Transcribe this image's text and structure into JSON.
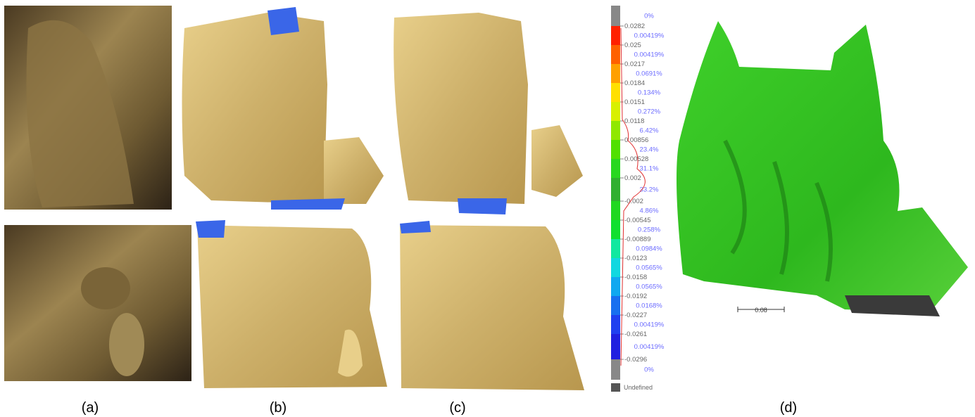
{
  "panels": [
    {
      "label": "(a)"
    },
    {
      "label": "(b)"
    },
    {
      "label": "(c)"
    },
    {
      "label": "(d)"
    }
  ],
  "color_scale": {
    "ticks": [
      "0.0282",
      "0.025",
      "0.0217",
      "0.0184",
      "0.0151",
      "0.0118",
      "0.00856",
      "0.00528",
      "0.002",
      "-0.002",
      "-0.00545",
      "-0.00889",
      "-0.0123",
      "-0.0158",
      "-0.0192",
      "-0.0227",
      "-0.0261",
      "-0.0296"
    ],
    "percentages": [
      "0%",
      "0.00419%",
      "0.00419%",
      "0.0691%",
      "0.134%",
      "0.272%",
      "6.42%",
      "23.4%",
      "31.1%",
      "33.2%",
      "4.86%",
      "0.258%",
      "0.0984%",
      "0.0565%",
      "0.0565%",
      "0.0168%",
      "0.00419%",
      "0.00419%",
      "0%"
    ],
    "undefined_label": "Undefined"
  },
  "scale_bar": "0.08"
}
